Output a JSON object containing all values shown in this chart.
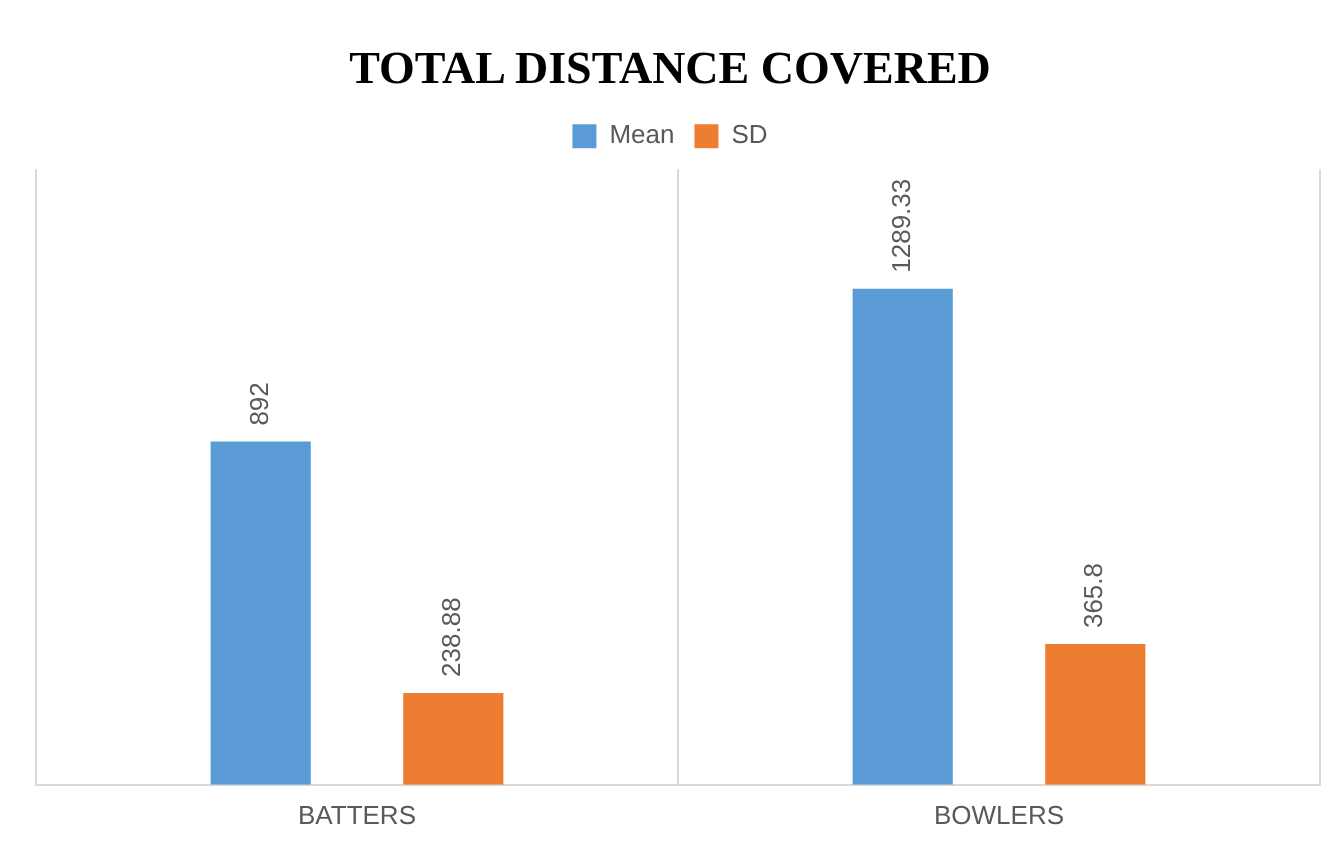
{
  "chart_data": {
    "type": "bar",
    "title": "TOTAL DISTANCE COVERED",
    "categories": [
      "BATTERS",
      "BOWLERS"
    ],
    "series": [
      {
        "name": "Mean",
        "color": "#5b9bd5",
        "values": [
          892,
          1289.33
        ]
      },
      {
        "name": "SD",
        "color": "#ed7d31",
        "values": [
          238.88,
          365.8
        ]
      }
    ],
    "data_labels": true,
    "relative": false,
    "grid": "x",
    "legend": "top"
  }
}
